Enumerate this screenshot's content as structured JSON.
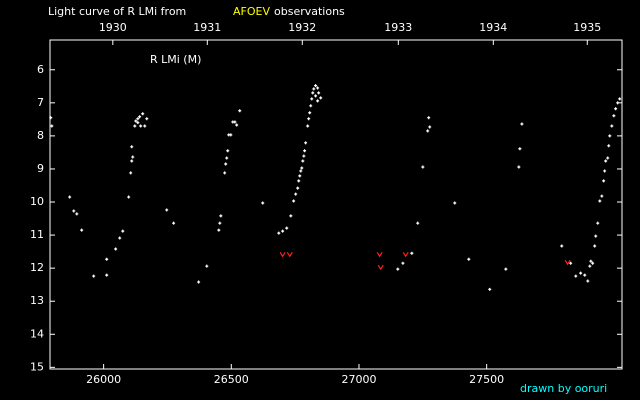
{
  "chart_data": {
    "type": "scatter",
    "title": "Light curve of R LMi from",
    "title_source": "AFOEV",
    "title_source_color": "#ffff00",
    "title_end": "observations",
    "annotation": "R LMi (M)",
    "credit": "drawn by ooruri",
    "credit_color": "#00ffff",
    "background": "#000000",
    "axis_color": "#ffffff",
    "invert_y": true,
    "xlim": [
      25790,
      28030
    ],
    "ylim": [
      5.1,
      15.05
    ],
    "xticks": [
      26000,
      26500,
      27000,
      27500
    ],
    "yticks": [
      6,
      7,
      8,
      9,
      10,
      11,
      12,
      13,
      14,
      15
    ],
    "top_ticks": [
      {
        "value": 26036,
        "label": "1930"
      },
      {
        "value": 26406,
        "label": "1931"
      },
      {
        "value": 26778,
        "label": "1932"
      },
      {
        "value": 27154,
        "label": "1933"
      },
      {
        "value": 27526,
        "label": "1934"
      },
      {
        "value": 27894,
        "label": "1935"
      }
    ],
    "series": [
      {
        "color": "#ffffff",
        "marker": "cross",
        "x": [
          25793,
          25797,
          25867,
          25883,
          25895,
          25914,
          25961,
          26012,
          26012,
          26047,
          26063,
          26075,
          26098,
          26106,
          26110,
          26114,
          26110,
          26122,
          26126,
          26134,
          26134,
          26141,
          26145,
          26153,
          26161,
          26169,
          26247,
          26274,
          26372,
          26404,
          26451,
          26455,
          26459,
          26474,
          26478,
          26482,
          26486,
          26490,
          26498,
          26506,
          26514,
          26521,
          26533,
          26623,
          26686,
          26701,
          26717,
          26733,
          26744,
          26752,
          26760,
          26764,
          26768,
          26772,
          26776,
          26780,
          26784,
          26787,
          26791,
          26799,
          26803,
          26807,
          26811,
          26815,
          26819,
          26823,
          26830,
          26838,
          26842,
          26850,
          26838,
          26830,
          27152,
          27172,
          27207,
          27230,
          27250,
          27269,
          27273,
          27277,
          27375,
          27430,
          27512,
          27575,
          27626,
          27630,
          27638,
          27794,
          27829,
          27849,
          27868,
          27884,
          27896,
          27904,
          27908,
          27915,
          27923,
          27927,
          27935,
          27943,
          27951,
          27958,
          27962,
          27966,
          27974,
          27978,
          27982,
          27990,
          27998,
          28005,
          28013,
          28021
        ],
        "values": [
          7.45,
          7.7,
          9.85,
          10.27,
          10.36,
          10.85,
          12.24,
          12.21,
          11.73,
          11.42,
          11.09,
          10.88,
          9.85,
          9.12,
          8.76,
          8.64,
          8.33,
          7.7,
          7.55,
          7.6,
          7.48,
          7.42,
          7.7,
          7.33,
          7.7,
          7.48,
          10.24,
          10.64,
          12.42,
          11.94,
          10.85,
          10.64,
          10.42,
          9.12,
          8.85,
          8.67,
          8.45,
          7.97,
          7.97,
          7.58,
          7.58,
          7.67,
          7.24,
          10.03,
          10.94,
          10.88,
          10.79,
          10.42,
          9.97,
          9.76,
          9.58,
          9.36,
          9.21,
          9.06,
          8.97,
          8.76,
          8.61,
          8.45,
          8.21,
          7.7,
          7.48,
          7.3,
          7.09,
          6.88,
          6.7,
          6.58,
          6.48,
          6.55,
          6.7,
          6.85,
          6.94,
          6.79,
          12.03,
          11.85,
          11.55,
          10.64,
          8.94,
          7.85,
          7.45,
          7.73,
          10.03,
          11.73,
          12.64,
          12.03,
          8.94,
          8.39,
          7.64,
          11.33,
          11.85,
          12.24,
          12.15,
          12.21,
          12.39,
          11.94,
          11.79,
          11.85,
          11.33,
          11.03,
          10.64,
          9.97,
          9.82,
          9.36,
          9.06,
          8.76,
          8.67,
          8.3,
          8.0,
          7.7,
          7.39,
          7.18,
          7.0,
          6.88
        ]
      },
      {
        "color": "#ff2020",
        "marker": "v",
        "x": [
          26701,
          26729,
          27081,
          27085,
          27183,
          27817
        ],
        "values": [
          11.58,
          11.58,
          11.58,
          11.97,
          11.58,
          11.82
        ]
      }
    ]
  }
}
